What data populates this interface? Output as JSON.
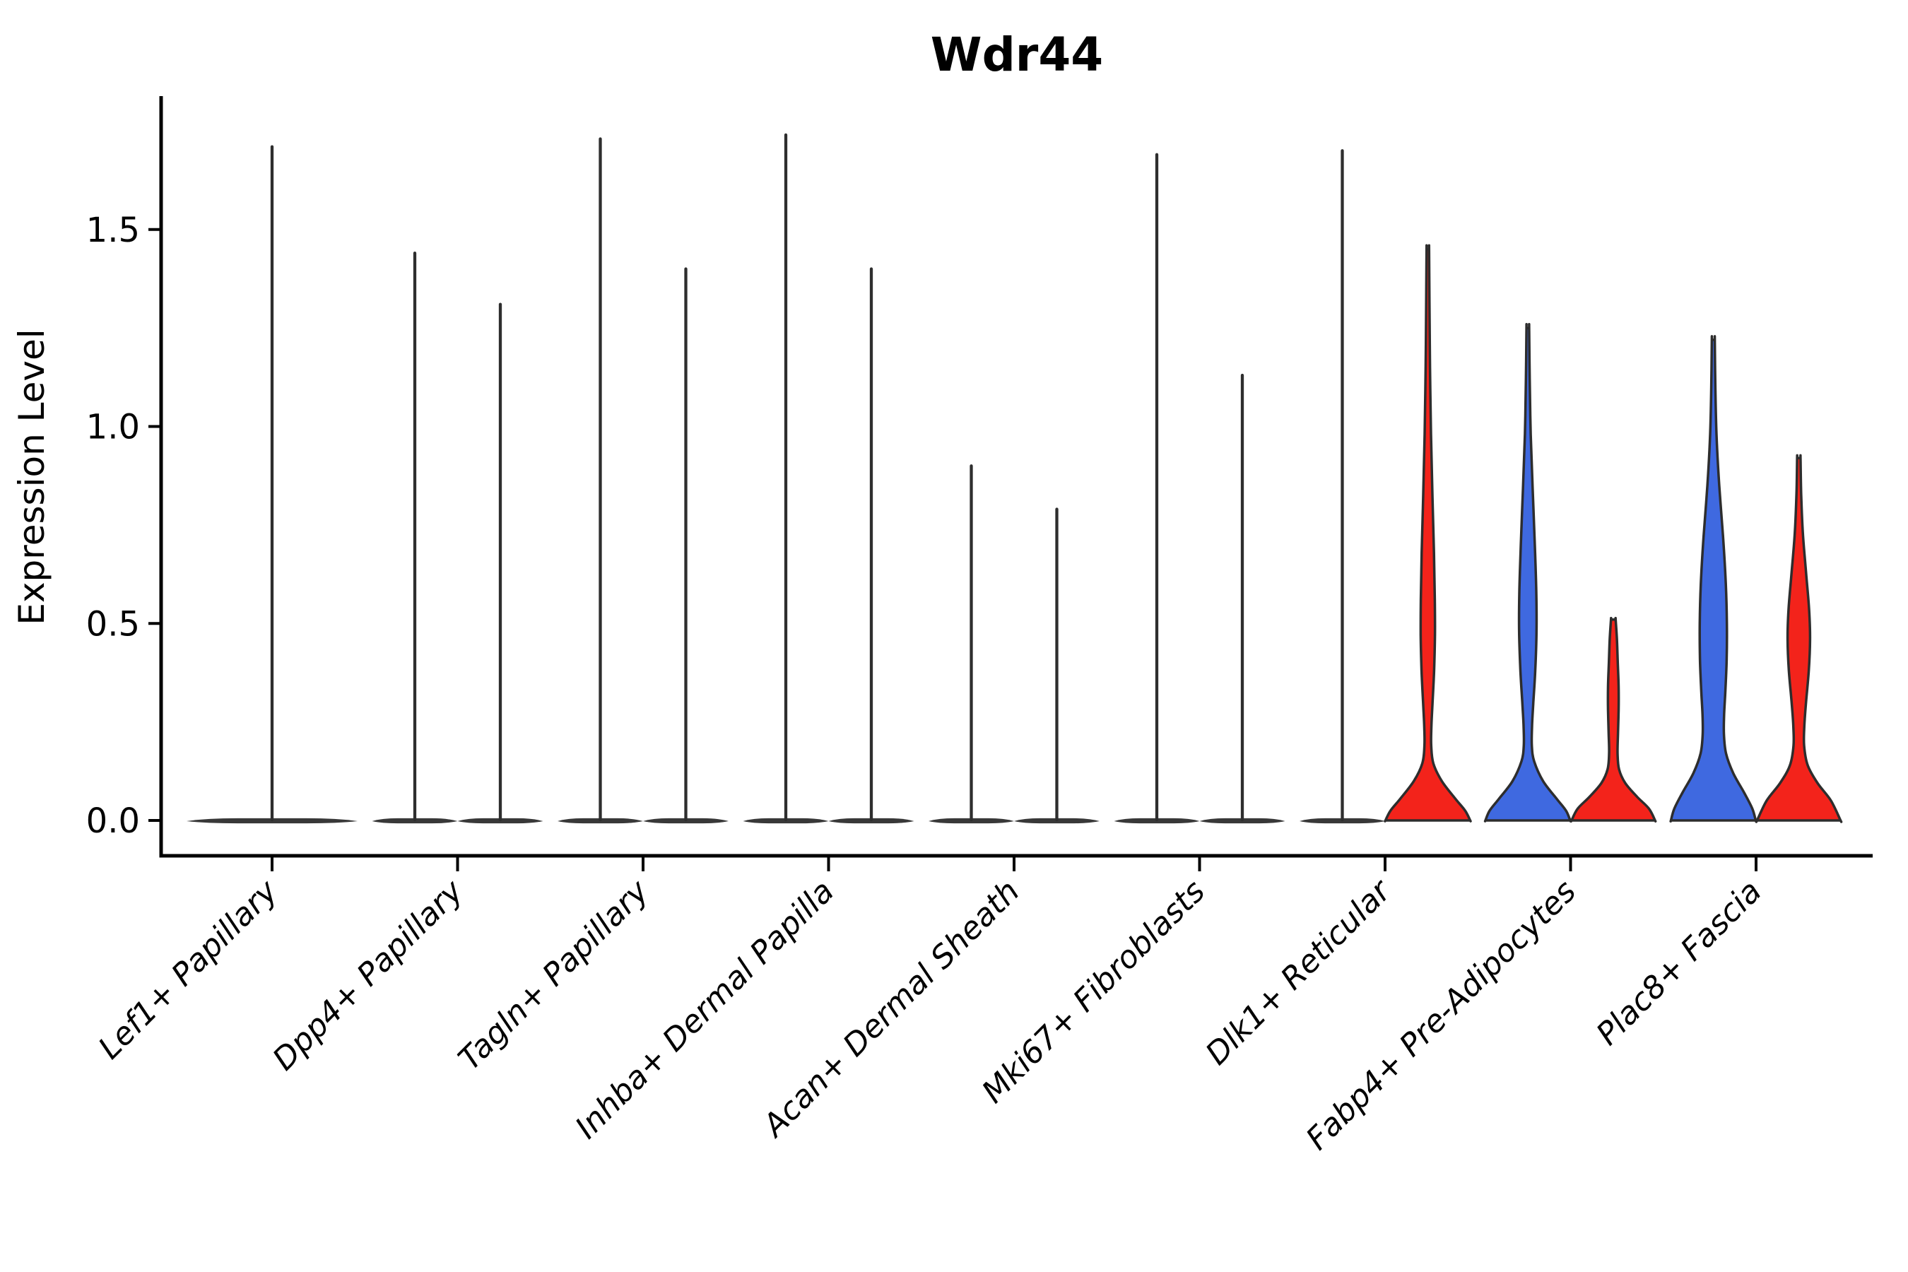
{
  "title": "Wdr44",
  "ylabel": "Expression Level",
  "colors": {
    "blue_fill": "#3F69E0",
    "red_fill": "#F3231B",
    "violin_outline": "#2D2D2D",
    "flat_bar": "#383838",
    "spike": "#2E2E2E",
    "axis": "#000000",
    "background": "#FFFFFF"
  },
  "chart_data": {
    "type": "violin",
    "title": "Wdr44",
    "xlabel": "",
    "ylabel": "Expression Level",
    "grid": false,
    "legend": null,
    "ylim": [
      -0.09,
      1.84
    ],
    "ytick_labels": [
      "0.0",
      "0.5",
      "1.0",
      "1.5"
    ],
    "ytick_values": [
      0.0,
      0.5,
      1.0,
      1.5
    ],
    "categories": [
      "Lef1+ Papillary",
      "Dpp4+ Papillary",
      "Tagln+ Papillary",
      "Inhba+ Dermal Papilla",
      "Acan+ Dermal Sheath",
      "Mki67+ Fibroblasts",
      "Dlk1+ Reticular",
      "Fabp4+ Pre-Adipocytes",
      "Plac8+ Fascia"
    ],
    "split_groups": {
      "left_color": "#3F69E0",
      "right_color": "#F3231B"
    },
    "violins": [
      {
        "category": "Lef1+ Papillary",
        "slot": "single",
        "style": "flat",
        "max_value": 1.71
      },
      {
        "category": "Dpp4+ Papillary",
        "slot": "left",
        "style": "flat",
        "max_value": 1.44
      },
      {
        "category": "Dpp4+ Papillary",
        "slot": "right",
        "style": "flat",
        "max_value": 1.31
      },
      {
        "category": "Tagln+ Papillary",
        "slot": "left",
        "style": "flat",
        "max_value": 1.73
      },
      {
        "category": "Tagln+ Papillary",
        "slot": "right",
        "style": "flat",
        "max_value": 1.4
      },
      {
        "category": "Inhba+ Dermal Papilla",
        "slot": "left",
        "style": "flat",
        "max_value": 1.74
      },
      {
        "category": "Inhba+ Dermal Papilla",
        "slot": "right",
        "style": "flat",
        "max_value": 1.4
      },
      {
        "category": "Acan+ Dermal Sheath",
        "slot": "left",
        "style": "flat",
        "max_value": 0.9
      },
      {
        "category": "Acan+ Dermal Sheath",
        "slot": "right",
        "style": "flat",
        "max_value": 0.79
      },
      {
        "category": "Mki67+ Fibroblasts",
        "slot": "left",
        "style": "flat",
        "max_value": 1.69
      },
      {
        "category": "Mki67+ Fibroblasts",
        "slot": "right",
        "style": "flat",
        "max_value": 1.13
      },
      {
        "category": "Dlk1+ Reticular",
        "slot": "left",
        "style": "flat",
        "max_value": 1.7
      },
      {
        "category": "Dlk1+ Reticular",
        "slot": "right",
        "style": "violin",
        "fill": "red",
        "max_value": 1.45,
        "profile": [
          [
            1.45,
            0.03
          ],
          [
            1.32,
            0.038
          ],
          [
            1.15,
            0.052
          ],
          [
            0.98,
            0.075
          ],
          [
            0.82,
            0.11
          ],
          [
            0.68,
            0.145
          ],
          [
            0.56,
            0.165
          ],
          [
            0.47,
            0.168
          ],
          [
            0.38,
            0.148
          ],
          [
            0.3,
            0.112
          ],
          [
            0.24,
            0.085
          ],
          [
            0.19,
            0.08
          ],
          [
            0.145,
            0.13
          ],
          [
            0.1,
            0.33
          ],
          [
            0.055,
            0.65
          ],
          [
            0.025,
            0.88
          ],
          [
            0.0,
            1.0
          ]
        ]
      },
      {
        "category": "Fabp4+ Pre-Adipocytes",
        "slot": "left",
        "style": "violin",
        "fill": "blue",
        "max_value": 1.25,
        "profile": [
          [
            1.25,
            0.032
          ],
          [
            1.12,
            0.045
          ],
          [
            0.98,
            0.068
          ],
          [
            0.84,
            0.115
          ],
          [
            0.7,
            0.165
          ],
          [
            0.58,
            0.2
          ],
          [
            0.48,
            0.205
          ],
          [
            0.38,
            0.175
          ],
          [
            0.3,
            0.13
          ],
          [
            0.24,
            0.1
          ],
          [
            0.19,
            0.095
          ],
          [
            0.15,
            0.15
          ],
          [
            0.1,
            0.36
          ],
          [
            0.055,
            0.68
          ],
          [
            0.025,
            0.9
          ],
          [
            0.0,
            1.0
          ]
        ]
      },
      {
        "category": "Fabp4+ Pre-Adipocytes",
        "slot": "right",
        "style": "violin",
        "fill": "red",
        "max_value": 0.51,
        "profile": [
          [
            0.51,
            0.055
          ],
          [
            0.46,
            0.085
          ],
          [
            0.4,
            0.105
          ],
          [
            0.34,
            0.125
          ],
          [
            0.28,
            0.125
          ],
          [
            0.22,
            0.11
          ],
          [
            0.17,
            0.1
          ],
          [
            0.13,
            0.135
          ],
          [
            0.095,
            0.28
          ],
          [
            0.06,
            0.56
          ],
          [
            0.03,
            0.84
          ],
          [
            0.0,
            0.985
          ]
        ]
      },
      {
        "category": "Plac8+ Fascia",
        "slot": "left",
        "style": "violin",
        "fill": "blue",
        "max_value": 1.22,
        "profile": [
          [
            1.22,
            0.035
          ],
          [
            1.1,
            0.048
          ],
          [
            0.98,
            0.075
          ],
          [
            0.85,
            0.14
          ],
          [
            0.72,
            0.23
          ],
          [
            0.6,
            0.295
          ],
          [
            0.5,
            0.32
          ],
          [
            0.41,
            0.315
          ],
          [
            0.33,
            0.285
          ],
          [
            0.27,
            0.255
          ],
          [
            0.22,
            0.25
          ],
          [
            0.17,
            0.3
          ],
          [
            0.12,
            0.47
          ],
          [
            0.07,
            0.73
          ],
          [
            0.03,
            0.92
          ],
          [
            0.0,
            1.0
          ]
        ]
      },
      {
        "category": "Plac8+ Fascia",
        "slot": "right",
        "style": "violin",
        "fill": "red",
        "max_value": 0.92,
        "profile": [
          [
            0.92,
            0.04
          ],
          [
            0.83,
            0.055
          ],
          [
            0.73,
            0.095
          ],
          [
            0.63,
            0.17
          ],
          [
            0.54,
            0.24
          ],
          [
            0.46,
            0.265
          ],
          [
            0.38,
            0.235
          ],
          [
            0.3,
            0.17
          ],
          [
            0.24,
            0.13
          ],
          [
            0.19,
            0.125
          ],
          [
            0.14,
            0.21
          ],
          [
            0.095,
            0.44
          ],
          [
            0.05,
            0.76
          ],
          [
            0.0,
            0.985
          ]
        ]
      }
    ]
  }
}
